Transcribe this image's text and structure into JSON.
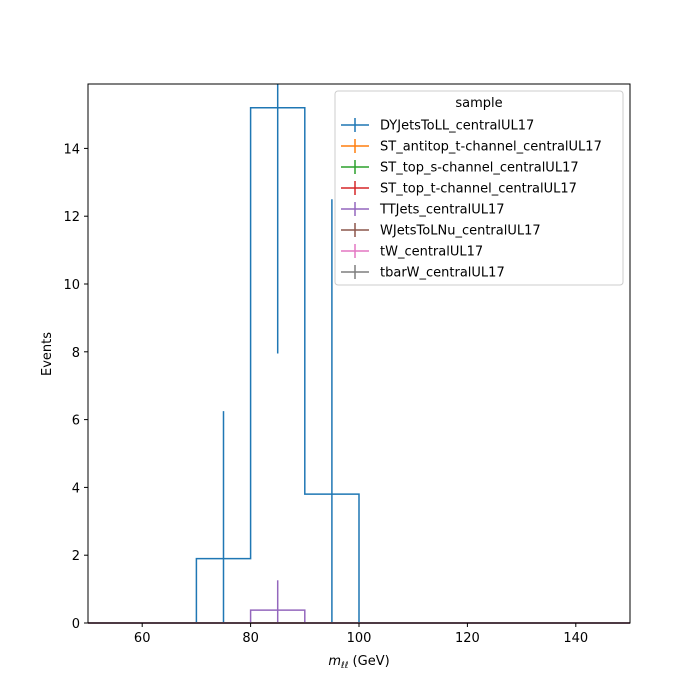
{
  "chart_data": {
    "type": "step-histogram",
    "xlabel_base": "m",
    "xlabel_sub": "ℓℓ",
    "xlabel_unit": " (GeV)",
    "ylabel": "Events",
    "xlim": [
      50,
      150
    ],
    "ylim": [
      0,
      15.9
    ],
    "xticks": [
      60,
      80,
      100,
      120,
      140
    ],
    "yticks": [
      0,
      2,
      4,
      6,
      8,
      10,
      12,
      14
    ],
    "xtick_labels": [
      "60",
      "80",
      "100",
      "120",
      "140"
    ],
    "ytick_labels": [
      "0",
      "2",
      "4",
      "6",
      "8",
      "10",
      "12",
      "14"
    ],
    "bin_edges": [
      50,
      60,
      70,
      80,
      90,
      100,
      110,
      120,
      130,
      140,
      150
    ],
    "legend": {
      "title": "sample",
      "placement": "top-right"
    },
    "series": [
      {
        "name": "DYJetsToLL_centralUL17",
        "color": "#1f77b4",
        "values": [
          0,
          0,
          1.9,
          15.2,
          3.8,
          0,
          0,
          0,
          0,
          0
        ],
        "errors": [
          0,
          0,
          4.35,
          7.25,
          8.7,
          0,
          0,
          0,
          0,
          0
        ]
      },
      {
        "name": "ST_antitop_t-channel_centralUL17",
        "color": "#ff7f0e",
        "values": [
          0,
          0,
          0,
          0,
          0,
          0,
          0,
          0,
          0,
          0
        ],
        "errors": [
          0,
          0,
          0,
          0,
          0,
          0,
          0,
          0,
          0,
          0
        ]
      },
      {
        "name": "ST_top_s-channel_centralUL17",
        "color": "#2ca02c",
        "values": [
          0,
          0,
          0,
          0,
          0,
          0,
          0,
          0,
          0,
          0
        ],
        "errors": [
          0,
          0,
          0,
          0,
          0,
          0,
          0,
          0,
          0,
          0
        ]
      },
      {
        "name": "ST_top_t-channel_centralUL17",
        "color": "#d62728",
        "values": [
          0,
          0,
          0,
          0,
          0,
          0,
          0,
          0,
          0,
          0
        ],
        "errors": [
          0,
          0,
          0,
          0,
          0,
          0,
          0,
          0,
          0,
          0
        ]
      },
      {
        "name": "TTJets_centralUL17",
        "color": "#9467bd",
        "values": [
          0,
          0,
          0,
          0.38,
          0,
          0,
          0,
          0,
          0,
          0
        ],
        "errors": [
          0,
          0,
          0,
          0.88,
          0,
          0,
          0,
          0,
          0,
          0
        ]
      },
      {
        "name": "WJetsToLNu_centralUL17",
        "color": "#8c564b",
        "values": [
          0,
          0,
          0,
          0,
          0,
          0,
          0,
          0,
          0,
          0
        ],
        "errors": [
          0,
          0,
          0,
          0,
          0,
          0,
          0,
          0,
          0,
          0
        ]
      },
      {
        "name": "tW_centralUL17",
        "color": "#e377c2",
        "values": [
          0,
          0,
          0,
          0,
          0,
          0,
          0,
          0,
          0,
          0
        ],
        "errors": [
          0,
          0,
          0,
          0,
          0,
          0,
          0,
          0,
          0,
          0
        ]
      },
      {
        "name": "tbarW_centralUL17",
        "color": "#7f7f7f",
        "values": [
          0,
          0,
          0,
          0,
          0,
          0,
          0,
          0,
          0,
          0
        ],
        "errors": [
          0,
          0,
          0,
          0,
          0,
          0,
          0,
          0,
          0,
          0
        ]
      }
    ]
  }
}
